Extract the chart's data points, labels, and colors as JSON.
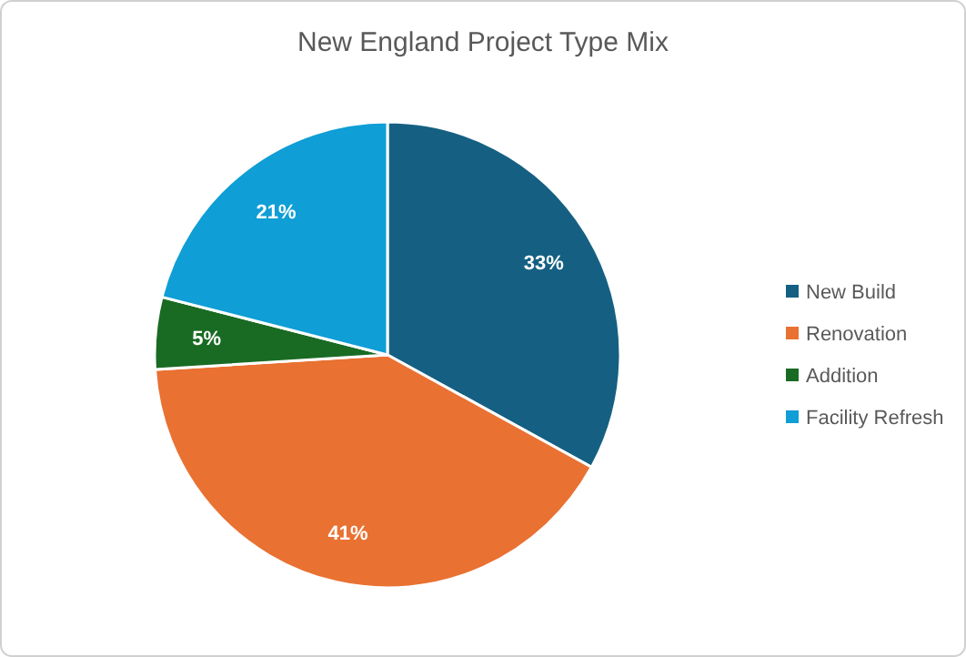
{
  "chart_data": {
    "type": "pie",
    "title": "New England Project Type Mix",
    "categories": [
      "New Build",
      "Renovation",
      "Addition",
      "Facility Refresh"
    ],
    "values": [
      33,
      41,
      5,
      21
    ],
    "colors": [
      "#156082",
      "#e97132",
      "#196b24",
      "#0f9ed5"
    ],
    "value_labels": [
      "33%",
      "41%",
      "5%",
      "21%"
    ],
    "legend": "right"
  }
}
